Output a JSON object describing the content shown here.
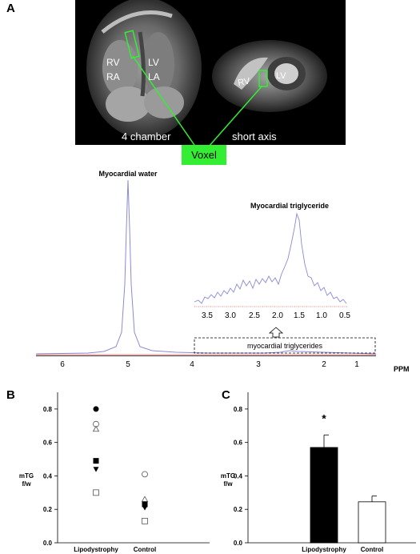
{
  "panel_a": {
    "letter": "A",
    "mri": {
      "four_chamber_labels": {
        "rv": "RV",
        "ra": "RA",
        "lv": "LV",
        "la": "LA"
      },
      "short_axis_labels": {
        "rv": "RV",
        "lv": "LV"
      },
      "four_chamber_caption": "4 chamber",
      "short_axis_caption": "short axis",
      "voxel_label": "Voxel",
      "voxel_color": "#33ee33"
    },
    "spectrum": {
      "water_label": "Myocardial water",
      "tg_label": "Myocardial triglyceride",
      "box_label": "myocardial triglycerides",
      "x_ticks": [
        "6",
        "5",
        "4",
        "3",
        "2",
        "1"
      ],
      "x_unit": "PPM",
      "inset_ticks": [
        "3.5",
        "3.0",
        "2.5",
        "2.0",
        "1.5",
        "1.0",
        "0.5"
      ],
      "trace_color": "#8a8ad8",
      "baseline_color": "#e05050"
    }
  },
  "chart_data": [
    {
      "panel": "B",
      "type": "scatter",
      "ylabel_line1": "mTG",
      "ylabel_line2": "f/w",
      "ylim": [
        0,
        0.9
      ],
      "yticks": [
        "0.0",
        "0.2",
        "0.4",
        "0.6",
        "0.8"
      ],
      "categories": [
        "Lipodystrophy",
        "Control"
      ],
      "points": [
        {
          "group": "Lipodystrophy",
          "marker": "filled-circle",
          "value": 0.8
        },
        {
          "group": "Lipodystrophy",
          "marker": "open-circle",
          "value": 0.71
        },
        {
          "group": "Lipodystrophy",
          "marker": "open-triangle",
          "value": 0.68
        },
        {
          "group": "Lipodystrophy",
          "marker": "filled-square",
          "value": 0.49
        },
        {
          "group": "Lipodystrophy",
          "marker": "filled-triangle-down",
          "value": 0.44
        },
        {
          "group": "Lipodystrophy",
          "marker": "open-square",
          "value": 0.3
        },
        {
          "group": "Control",
          "marker": "open-circle",
          "value": 0.41
        },
        {
          "group": "Control",
          "marker": "open-triangle",
          "value": 0.26
        },
        {
          "group": "Control",
          "marker": "filled-square",
          "value": 0.23
        },
        {
          "group": "Control",
          "marker": "filled-triangle-down",
          "value": 0.21
        },
        {
          "group": "Control",
          "marker": "open-square",
          "value": 0.13
        }
      ]
    },
    {
      "panel": "C",
      "type": "bar",
      "ylabel_line1": "mTG",
      "ylabel_line2": "f/w",
      "ylim": [
        0,
        0.9
      ],
      "yticks": [
        "0.0",
        "0.2",
        "0.4",
        "0.6",
        "0.8"
      ],
      "categories": [
        "Lipodystrophy",
        "Control"
      ],
      "values": [
        0.57,
        0.245
      ],
      "errors": [
        0.075,
        0.035
      ],
      "fills": [
        "#000000",
        "#ffffff"
      ],
      "significance": "*"
    }
  ]
}
